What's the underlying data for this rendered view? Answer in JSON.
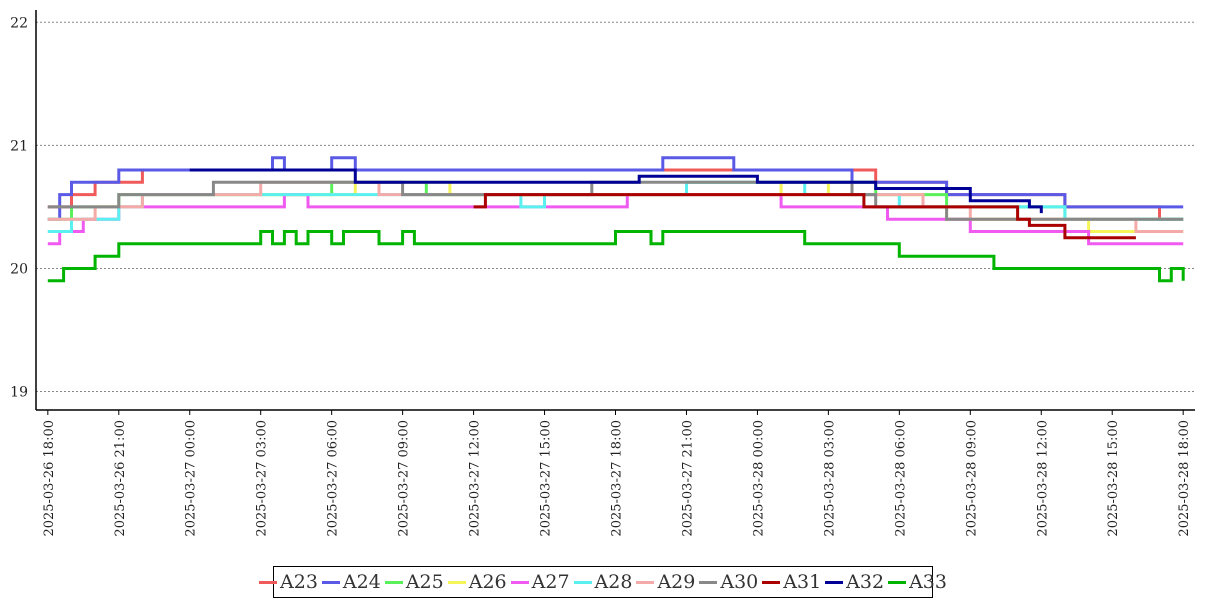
{
  "chart_data": {
    "type": "line",
    "title": "",
    "xlabel": "",
    "ylabel": "",
    "ylim": [
      18.85,
      22.1
    ],
    "yticks": [
      19,
      20,
      21,
      22
    ],
    "xlim": [
      "2025-03-26 17:30",
      "2025-03-28 18:30"
    ],
    "xticks": [
      "2025-03-26 18:00",
      "2025-03-26 21:00",
      "2025-03-27 00:00",
      "2025-03-27 03:00",
      "2025-03-27 06:00",
      "2025-03-27 09:00",
      "2025-03-27 12:00",
      "2025-03-27 15:00",
      "2025-03-27 18:00",
      "2025-03-27 21:00",
      "2025-03-28 00:00",
      "2025-03-28 03:00",
      "2025-03-28 06:00",
      "2025-03-28 09:00",
      "2025-03-28 12:00",
      "2025-03-28 15:00",
      "2025-03-28 18:00"
    ],
    "grid": "horizontal-dotted",
    "legend_position": "bottom-center",
    "series": [
      {
        "name": "A23",
        "color": "#f05a5a",
        "points": [
          [
            "2025-03-26 18:00",
            20.5
          ],
          [
            "2025-03-26 19:00",
            20.6
          ],
          [
            "2025-03-26 20:00",
            20.7
          ],
          [
            "2025-03-26 22:00",
            20.8
          ],
          [
            "2025-03-27 18:00",
            20.8
          ],
          [
            "2025-03-28 04:00",
            20.8
          ],
          [
            "2025-03-28 05:00",
            20.7
          ],
          [
            "2025-03-28 07:00",
            20.7
          ],
          [
            "2025-03-28 08:00",
            20.6
          ],
          [
            "2025-03-28 12:00",
            20.6
          ],
          [
            "2025-03-28 13:00",
            20.5
          ],
          [
            "2025-03-28 16:00",
            20.5
          ],
          [
            "2025-03-28 17:00",
            20.4
          ],
          [
            "2025-03-28 18:00",
            20.4
          ]
        ]
      },
      {
        "name": "A24",
        "color": "#5a5ae6",
        "points": [
          [
            "2025-03-26 18:00",
            20.4
          ],
          [
            "2025-03-26 18:30",
            20.6
          ],
          [
            "2025-03-26 19:00",
            20.7
          ],
          [
            "2025-03-26 21:00",
            20.8
          ],
          [
            "2025-03-27 03:00",
            20.8
          ],
          [
            "2025-03-27 03:30",
            20.9
          ],
          [
            "2025-03-27 04:00",
            20.8
          ],
          [
            "2025-03-27 06:00",
            20.9
          ],
          [
            "2025-03-27 07:00",
            20.8
          ],
          [
            "2025-03-27 19:00",
            20.8
          ],
          [
            "2025-03-27 20:00",
            20.9
          ],
          [
            "2025-03-27 22:00",
            20.9
          ],
          [
            "2025-03-27 23:00",
            20.8
          ],
          [
            "2025-03-28 03:00",
            20.8
          ],
          [
            "2025-03-28 04:00",
            20.7
          ],
          [
            "2025-03-28 07:00",
            20.7
          ],
          [
            "2025-03-28 08:00",
            20.6
          ],
          [
            "2025-03-28 12:00",
            20.6
          ],
          [
            "2025-03-28 13:00",
            20.5
          ],
          [
            "2025-03-28 18:00",
            20.5
          ]
        ]
      },
      {
        "name": "A25",
        "color": "#5af05a",
        "points": [
          [
            "2025-03-26 18:00",
            20.4
          ],
          [
            "2025-03-26 19:00",
            20.5
          ],
          [
            "2025-03-26 21:00",
            20.6
          ],
          [
            "2025-03-27 05:00",
            20.6
          ],
          [
            "2025-03-27 06:00",
            20.7
          ],
          [
            "2025-03-27 09:00",
            20.7
          ],
          [
            "2025-03-27 10:00",
            20.6
          ],
          [
            "2025-03-27 20:00",
            20.6
          ],
          [
            "2025-03-27 21:00",
            20.7
          ],
          [
            "2025-03-28 03:00",
            20.7
          ],
          [
            "2025-03-28 05:00",
            20.6
          ],
          [
            "2025-03-28 08:00",
            20.5
          ],
          [
            "2025-03-28 12:00",
            20.5
          ],
          [
            "2025-03-28 13:00",
            20.4
          ],
          [
            "2025-03-28 18:00",
            20.4
          ]
        ]
      },
      {
        "name": "A26",
        "color": "#f5f55a",
        "points": [
          [
            "2025-03-26 18:00",
            20.3
          ],
          [
            "2025-03-26 19:00",
            20.4
          ],
          [
            "2025-03-26 20:00",
            20.5
          ],
          [
            "2025-03-26 22:00",
            20.6
          ],
          [
            "2025-03-27 06:00",
            20.6
          ],
          [
            "2025-03-27 07:00",
            20.7
          ],
          [
            "2025-03-27 10:00",
            20.7
          ],
          [
            "2025-03-27 11:00",
            20.6
          ],
          [
            "2025-03-28 00:00",
            20.6
          ],
          [
            "2025-03-28 01:00",
            20.7
          ],
          [
            "2025-03-28 03:00",
            20.6
          ],
          [
            "2025-03-28 07:00",
            20.5
          ],
          [
            "2025-03-28 08:00",
            20.4
          ],
          [
            "2025-03-28 13:00",
            20.4
          ],
          [
            "2025-03-28 14:00",
            20.3
          ],
          [
            "2025-03-28 18:00",
            20.3
          ]
        ]
      },
      {
        "name": "A27",
        "color": "#f05af0",
        "points": [
          [
            "2025-03-26 18:00",
            20.2
          ],
          [
            "2025-03-26 18:30",
            20.3
          ],
          [
            "2025-03-26 19:30",
            20.4
          ],
          [
            "2025-03-26 21:00",
            20.5
          ],
          [
            "2025-03-27 03:00",
            20.5
          ],
          [
            "2025-03-27 04:00",
            20.6
          ],
          [
            "2025-03-27 05:00",
            20.5
          ],
          [
            "2025-03-27 18:00",
            20.5
          ],
          [
            "2025-03-27 18:30",
            20.6
          ],
          [
            "2025-03-28 00:00",
            20.6
          ],
          [
            "2025-03-28 01:00",
            20.5
          ],
          [
            "2025-03-28 05:30",
            20.4
          ],
          [
            "2025-03-28 08:00",
            20.4
          ],
          [
            "2025-03-28 09:00",
            20.3
          ],
          [
            "2025-03-28 13:00",
            20.3
          ],
          [
            "2025-03-28 14:00",
            20.2
          ],
          [
            "2025-03-28 18:00",
            20.2
          ]
        ]
      },
      {
        "name": "A28",
        "color": "#5af0f0",
        "points": [
          [
            "2025-03-26 18:00",
            20.3
          ],
          [
            "2025-03-26 19:00",
            20.4
          ],
          [
            "2025-03-26 21:00",
            20.5
          ],
          [
            "2025-03-26 22:00",
            20.6
          ],
          [
            "2025-03-27 13:00",
            20.6
          ],
          [
            "2025-03-27 14:00",
            20.5
          ],
          [
            "2025-03-27 15:00",
            20.6
          ],
          [
            "2025-03-27 20:00",
            20.6
          ],
          [
            "2025-03-27 21:00",
            20.7
          ],
          [
            "2025-03-28 01:00",
            20.7
          ],
          [
            "2025-03-28 02:00",
            20.6
          ],
          [
            "2025-03-28 06:00",
            20.5
          ],
          [
            "2025-03-28 12:00",
            20.5
          ],
          [
            "2025-03-28 13:00",
            20.4
          ],
          [
            "2025-03-28 18:00",
            20.4
          ]
        ]
      },
      {
        "name": "A29",
        "color": "#f5aaaa",
        "points": [
          [
            "2025-03-26 18:00",
            20.4
          ],
          [
            "2025-03-26 20:00",
            20.5
          ],
          [
            "2025-03-26 22:00",
            20.6
          ],
          [
            "2025-03-27 03:00",
            20.7
          ],
          [
            "2025-03-27 08:00",
            20.6
          ],
          [
            "2025-03-28 05:00",
            20.6
          ],
          [
            "2025-03-28 07:00",
            20.5
          ],
          [
            "2025-03-28 09:00",
            20.4
          ],
          [
            "2025-03-28 14:00",
            20.4
          ],
          [
            "2025-03-28 16:00",
            20.3
          ],
          [
            "2025-03-28 18:00",
            20.3
          ]
        ]
      },
      {
        "name": "A30",
        "color": "#888888",
        "points": [
          [
            "2025-03-26 18:00",
            20.5
          ],
          [
            "2025-03-26 20:00",
            20.5
          ],
          [
            "2025-03-26 21:00",
            20.6
          ],
          [
            "2025-03-27 00:00",
            20.6
          ],
          [
            "2025-03-27 01:00",
            20.7
          ],
          [
            "2025-03-27 09:00",
            20.6
          ],
          [
            "2025-03-27 16:00",
            20.6
          ],
          [
            "2025-03-27 17:00",
            20.7
          ],
          [
            "2025-03-28 02:00",
            20.7
          ],
          [
            "2025-03-28 04:00",
            20.6
          ],
          [
            "2025-03-28 05:00",
            20.5
          ],
          [
            "2025-03-28 07:00",
            20.5
          ],
          [
            "2025-03-28 08:00",
            20.4
          ],
          [
            "2025-03-28 18:00",
            20.4
          ]
        ]
      },
      {
        "name": "A31",
        "color": "#aa0000",
        "points": [
          [
            "2025-03-27 12:00",
            20.5
          ],
          [
            "2025-03-27 12:30",
            20.6
          ],
          [
            "2025-03-28 04:30",
            20.5
          ],
          [
            "2025-03-28 08:00",
            20.5
          ],
          [
            "2025-03-28 11:00",
            20.4
          ],
          [
            "2025-03-28 11:30",
            20.35
          ],
          [
            "2025-03-28 13:00",
            20.25
          ],
          [
            "2025-03-28 16:00",
            20.25
          ]
        ]
      },
      {
        "name": "A32",
        "color": "#000096",
        "points": [
          [
            "2025-03-27 00:00",
            20.8
          ],
          [
            "2025-03-27 07:00",
            20.7
          ],
          [
            "2025-03-27 18:30",
            20.7
          ],
          [
            "2025-03-27 19:00",
            20.75
          ],
          [
            "2025-03-28 00:00",
            20.7
          ],
          [
            "2025-03-28 05:00",
            20.65
          ],
          [
            "2025-03-28 09:00",
            20.55
          ],
          [
            "2025-03-28 11:30",
            20.5
          ],
          [
            "2025-03-28 12:00",
            20.45
          ]
        ]
      },
      {
        "name": "A33",
        "color": "#00b400",
        "points": [
          [
            "2025-03-26 18:00",
            19.9
          ],
          [
            "2025-03-26 18:40",
            19.9
          ],
          [
            "2025-03-26 18:40",
            20.0
          ],
          [
            "2025-03-26 20:00",
            20.0
          ],
          [
            "2025-03-26 20:00",
            20.1
          ],
          [
            "2025-03-26 21:00",
            20.1
          ],
          [
            "2025-03-26 21:00",
            20.2
          ],
          [
            "2025-03-27 03:00",
            20.2
          ],
          [
            "2025-03-27 03:00",
            20.3
          ],
          [
            "2025-03-27 03:30",
            20.2
          ],
          [
            "2025-03-27 04:00",
            20.3
          ],
          [
            "2025-03-27 04:30",
            20.2
          ],
          [
            "2025-03-27 05:00",
            20.3
          ],
          [
            "2025-03-27 06:00",
            20.2
          ],
          [
            "2025-03-27 06:30",
            20.3
          ],
          [
            "2025-03-27 08:00",
            20.2
          ],
          [
            "2025-03-27 09:00",
            20.3
          ],
          [
            "2025-03-27 09:30",
            20.2
          ],
          [
            "2025-03-27 18:00",
            20.2
          ],
          [
            "2025-03-27 18:00",
            20.3
          ],
          [
            "2025-03-27 19:30",
            20.3
          ],
          [
            "2025-03-27 19:30",
            20.2
          ],
          [
            "2025-03-27 20:00",
            20.3
          ],
          [
            "2025-03-28 02:00",
            20.3
          ],
          [
            "2025-03-28 02:00",
            20.2
          ],
          [
            "2025-03-28 06:00",
            20.2
          ],
          [
            "2025-03-28 06:00",
            20.1
          ],
          [
            "2025-03-28 10:00",
            20.1
          ],
          [
            "2025-03-28 10:00",
            20.0
          ],
          [
            "2025-03-28 17:00",
            20.0
          ],
          [
            "2025-03-28 17:00",
            19.9
          ],
          [
            "2025-03-28 17:30",
            20.0
          ],
          [
            "2025-03-28 18:00",
            20.0
          ],
          [
            "2025-03-28 18:00",
            19.9
          ]
        ]
      }
    ]
  }
}
